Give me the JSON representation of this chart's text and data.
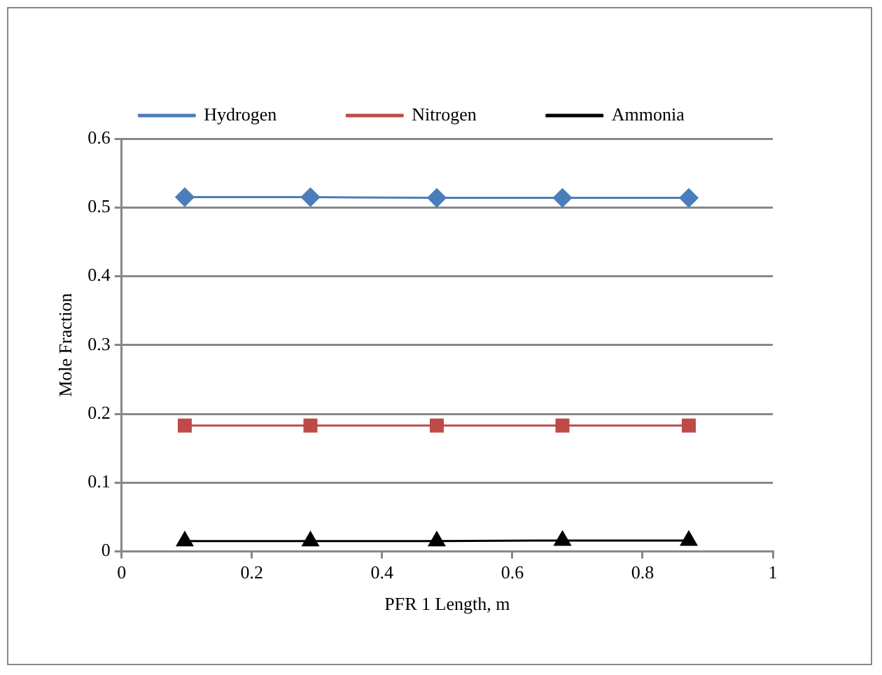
{
  "chart_data": {
    "type": "line",
    "xlabel": "PFR 1 Length, m",
    "ylabel": "Mole Fraction",
    "x": [
      0.097,
      0.29,
      0.484,
      0.677,
      0.871
    ],
    "series": [
      {
        "name": "Hydrogen",
        "color": "#4a7ebb",
        "marker": "diamond",
        "values": [
          0.515,
          0.515,
          0.514,
          0.514,
          0.514
        ]
      },
      {
        "name": "Nitrogen",
        "color": "#be4b48",
        "marker": "square",
        "values": [
          0.183,
          0.183,
          0.183,
          0.183,
          0.183
        ]
      },
      {
        "name": "Ammonia",
        "color": "#000000",
        "marker": "triangle",
        "values": [
          0.015,
          0.015,
          0.015,
          0.016,
          0.016
        ]
      }
    ],
    "xlim": [
      0,
      1
    ],
    "xticks": [
      0,
      0.2,
      0.4,
      0.6,
      0.8,
      1
    ],
    "ylim": [
      0,
      0.6
    ],
    "yticks": [
      0,
      0.1,
      0.2,
      0.3,
      0.4,
      0.5,
      0.6
    ],
    "grid": "y",
    "legend": "top",
    "line_style": "solid"
  }
}
